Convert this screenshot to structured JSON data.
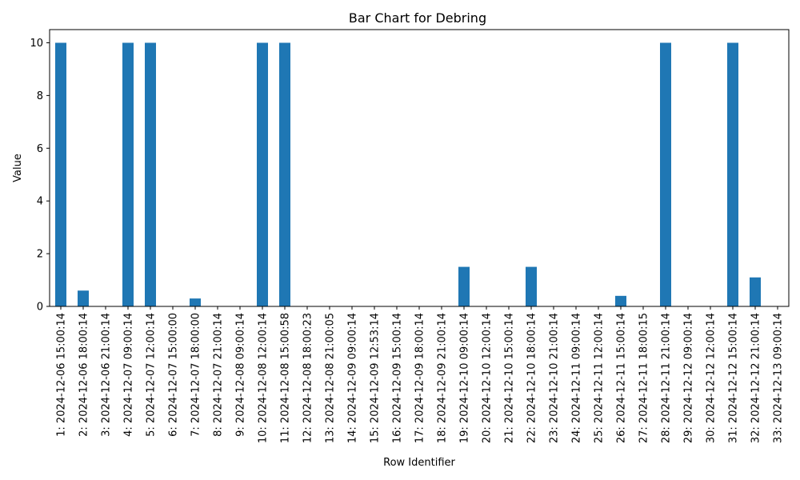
{
  "chart_data": {
    "type": "bar",
    "title": "Bar Chart for Debring",
    "xlabel": "Row Identifier",
    "ylabel": "Value",
    "ylim": [
      0,
      10.5
    ],
    "yticks": [
      0,
      2,
      4,
      6,
      8,
      10
    ],
    "grid": false,
    "bar_color": "#1f77b4",
    "categories": [
      "1: 2024-12-06 15:00:14",
      "2: 2024-12-06 18:00:14",
      "3: 2024-12-06 21:00:14",
      "4: 2024-12-07 09:00:14",
      "5: 2024-12-07 12:00:14",
      "6: 2024-12-07 15:00:00",
      "7: 2024-12-07 18:00:00",
      "8: 2024-12-07 21:00:14",
      "9: 2024-12-08 09:00:14",
      "10: 2024-12-08 12:00:14",
      "11: 2024-12-08 15:00:58",
      "12: 2024-12-08 18:00:23",
      "13: 2024-12-08 21:00:05",
      "14: 2024-12-09 09:00:14",
      "15: 2024-12-09 12:53:14",
      "16: 2024-12-09 15:00:14",
      "17: 2024-12-09 18:00:14",
      "18: 2024-12-09 21:00:14",
      "19: 2024-12-10 09:00:14",
      "20: 2024-12-10 12:00:14",
      "21: 2024-12-10 15:00:14",
      "22: 2024-12-10 18:00:14",
      "23: 2024-12-10 21:00:14",
      "24: 2024-12-11 09:00:14",
      "25: 2024-12-11 12:00:14",
      "26: 2024-12-11 15:00:14",
      "27: 2024-12-11 18:00:15",
      "28: 2024-12-11 21:00:14",
      "29: 2024-12-12 09:00:14",
      "30: 2024-12-12 12:00:14",
      "31: 2024-12-12 15:00:14",
      "32: 2024-12-12 21:00:14",
      "33: 2024-12-13 09:00:14"
    ],
    "values": [
      10,
      0.6,
      0,
      10,
      10,
      0,
      0.3,
      0,
      0,
      10,
      10,
      0,
      0,
      0,
      0,
      0,
      0,
      0,
      1.5,
      0,
      0,
      1.5,
      0,
      0,
      0,
      0.4,
      0,
      10,
      0,
      0,
      10,
      1.1,
      0
    ]
  }
}
